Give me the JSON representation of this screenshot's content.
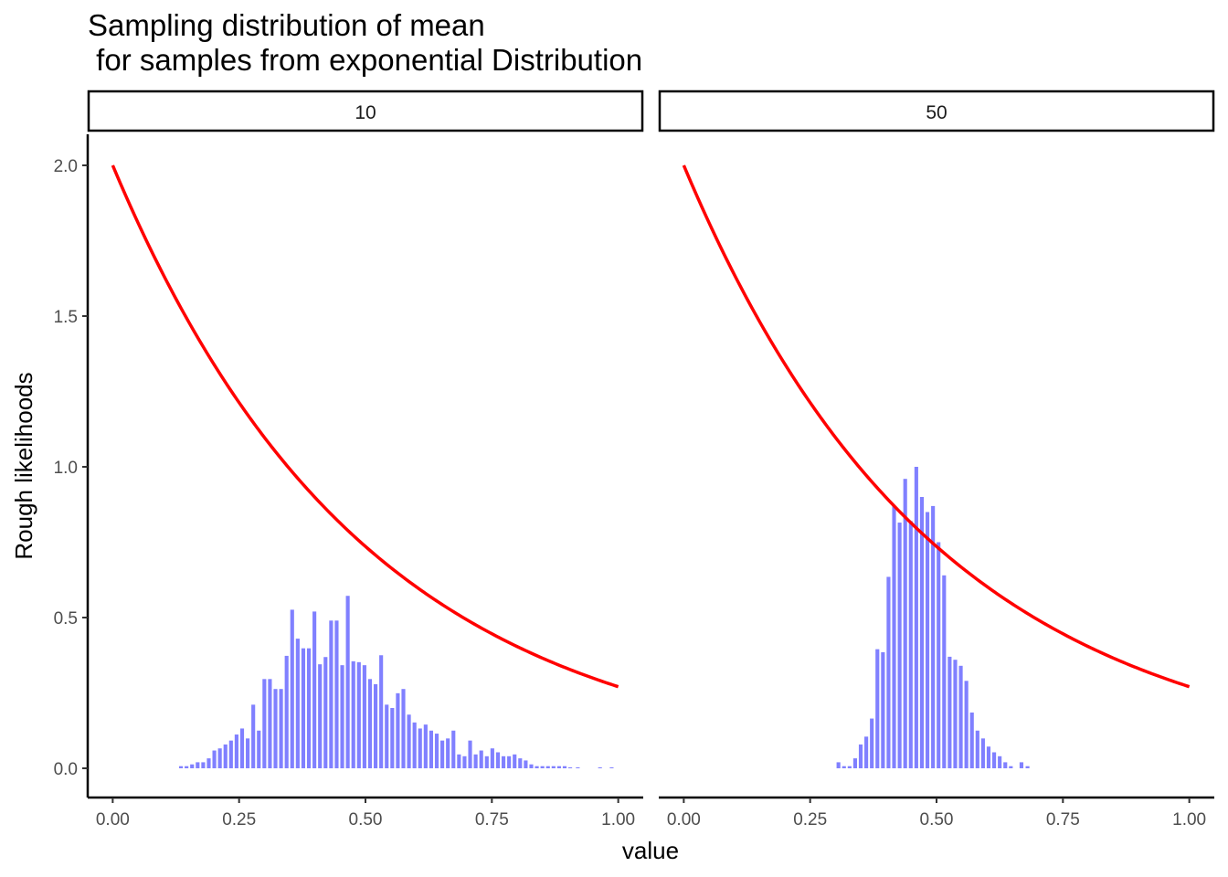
{
  "chart_data": {
    "type": "bar",
    "title_lines": [
      "Sampling distribution of mean",
      " for samples from exponential Distribution"
    ],
    "xlabel": "value",
    "ylabel": "Rough likelihoods",
    "xlim": [
      0,
      1
    ],
    "ylim": [
      0,
      2
    ],
    "x_ticks": [
      "0.00",
      "0.25",
      "0.50",
      "0.75",
      "1.00"
    ],
    "y_ticks": [
      "0.0",
      "0.5",
      "1.0",
      "1.5",
      "2.0"
    ],
    "grid": false,
    "bar_color": "#8080ff",
    "curve_color": "#ff0000",
    "curve": {
      "formula": "2*exp(-2*x)",
      "x_range": [
        0,
        1
      ]
    },
    "panels": [
      {
        "label": "10",
        "bar_width": 0.0111,
        "bars": [
          {
            "x": 0.135,
            "y": 0.007
          },
          {
            "x": 0.146,
            "y": 0.007
          },
          {
            "x": 0.157,
            "y": 0.013
          },
          {
            "x": 0.168,
            "y": 0.02
          },
          {
            "x": 0.179,
            "y": 0.02
          },
          {
            "x": 0.19,
            "y": 0.033
          },
          {
            "x": 0.201,
            "y": 0.059
          },
          {
            "x": 0.212,
            "y": 0.066
          },
          {
            "x": 0.223,
            "y": 0.079
          },
          {
            "x": 0.234,
            "y": 0.092
          },
          {
            "x": 0.245,
            "y": 0.112
          },
          {
            "x": 0.256,
            "y": 0.132
          },
          {
            "x": 0.267,
            "y": 0.099
          },
          {
            "x": 0.278,
            "y": 0.211
          },
          {
            "x": 0.289,
            "y": 0.125
          },
          {
            "x": 0.3,
            "y": 0.296
          },
          {
            "x": 0.311,
            "y": 0.296
          },
          {
            "x": 0.322,
            "y": 0.263
          },
          {
            "x": 0.333,
            "y": 0.263
          },
          {
            "x": 0.344,
            "y": 0.373
          },
          {
            "x": 0.355,
            "y": 0.526
          },
          {
            "x": 0.366,
            "y": 0.43
          },
          {
            "x": 0.377,
            "y": 0.398
          },
          {
            "x": 0.388,
            "y": 0.398
          },
          {
            "x": 0.399,
            "y": 0.52
          },
          {
            "x": 0.41,
            "y": 0.345
          },
          {
            "x": 0.421,
            "y": 0.369
          },
          {
            "x": 0.432,
            "y": 0.49
          },
          {
            "x": 0.443,
            "y": 0.49
          },
          {
            "x": 0.454,
            "y": 0.342
          },
          {
            "x": 0.465,
            "y": 0.572
          },
          {
            "x": 0.476,
            "y": 0.355
          },
          {
            "x": 0.487,
            "y": 0.352
          },
          {
            "x": 0.498,
            "y": 0.342
          },
          {
            "x": 0.509,
            "y": 0.296
          },
          {
            "x": 0.52,
            "y": 0.279
          },
          {
            "x": 0.531,
            "y": 0.375
          },
          {
            "x": 0.542,
            "y": 0.211
          },
          {
            "x": 0.553,
            "y": 0.2
          },
          {
            "x": 0.564,
            "y": 0.249
          },
          {
            "x": 0.575,
            "y": 0.263
          },
          {
            "x": 0.586,
            "y": 0.178
          },
          {
            "x": 0.597,
            "y": 0.152
          },
          {
            "x": 0.608,
            "y": 0.132
          },
          {
            "x": 0.619,
            "y": 0.145
          },
          {
            "x": 0.63,
            "y": 0.125
          },
          {
            "x": 0.641,
            "y": 0.115
          },
          {
            "x": 0.652,
            "y": 0.092
          },
          {
            "x": 0.663,
            "y": 0.099
          },
          {
            "x": 0.674,
            "y": 0.125
          },
          {
            "x": 0.685,
            "y": 0.046
          },
          {
            "x": 0.696,
            "y": 0.04
          },
          {
            "x": 0.707,
            "y": 0.092
          },
          {
            "x": 0.718,
            "y": 0.046
          },
          {
            "x": 0.729,
            "y": 0.059
          },
          {
            "x": 0.74,
            "y": 0.04
          },
          {
            "x": 0.751,
            "y": 0.066
          },
          {
            "x": 0.762,
            "y": 0.053
          },
          {
            "x": 0.773,
            "y": 0.04
          },
          {
            "x": 0.784,
            "y": 0.04
          },
          {
            "x": 0.795,
            "y": 0.046
          },
          {
            "x": 0.806,
            "y": 0.033
          },
          {
            "x": 0.817,
            "y": 0.026
          },
          {
            "x": 0.828,
            "y": 0.013
          },
          {
            "x": 0.839,
            "y": 0.007
          },
          {
            "x": 0.85,
            "y": 0.007
          },
          {
            "x": 0.861,
            "y": 0.007
          },
          {
            "x": 0.872,
            "y": 0.007
          },
          {
            "x": 0.883,
            "y": 0.007
          },
          {
            "x": 0.894,
            "y": 0.007
          },
          {
            "x": 0.905,
            "y": 0.003
          },
          {
            "x": 0.92,
            "y": 0.003
          },
          {
            "x": 0.964,
            "y": 0.003
          },
          {
            "x": 0.987,
            "y": 0.003
          }
        ]
      },
      {
        "label": "50",
        "bar_width": 0.0111,
        "bars": [
          {
            "x": 0.306,
            "y": 0.02
          },
          {
            "x": 0.317,
            "y": 0.007
          },
          {
            "x": 0.328,
            "y": 0.007
          },
          {
            "x": 0.339,
            "y": 0.033
          },
          {
            "x": 0.35,
            "y": 0.079
          },
          {
            "x": 0.361,
            "y": 0.105
          },
          {
            "x": 0.372,
            "y": 0.165
          },
          {
            "x": 0.383,
            "y": 0.395
          },
          {
            "x": 0.394,
            "y": 0.385
          },
          {
            "x": 0.405,
            "y": 0.635
          },
          {
            "x": 0.416,
            "y": 0.87
          },
          {
            "x": 0.427,
            "y": 0.815
          },
          {
            "x": 0.438,
            "y": 0.96
          },
          {
            "x": 0.449,
            "y": 0.82
          },
          {
            "x": 0.46,
            "y": 1.0
          },
          {
            "x": 0.471,
            "y": 0.9
          },
          {
            "x": 0.482,
            "y": 0.85
          },
          {
            "x": 0.493,
            "y": 0.87
          },
          {
            "x": 0.504,
            "y": 0.75
          },
          {
            "x": 0.515,
            "y": 0.64
          },
          {
            "x": 0.526,
            "y": 0.37
          },
          {
            "x": 0.537,
            "y": 0.36
          },
          {
            "x": 0.548,
            "y": 0.34
          },
          {
            "x": 0.559,
            "y": 0.29
          },
          {
            "x": 0.57,
            "y": 0.185
          },
          {
            "x": 0.581,
            "y": 0.125
          },
          {
            "x": 0.592,
            "y": 0.099
          },
          {
            "x": 0.603,
            "y": 0.072
          },
          {
            "x": 0.614,
            "y": 0.053
          },
          {
            "x": 0.625,
            "y": 0.04
          },
          {
            "x": 0.636,
            "y": 0.02
          },
          {
            "x": 0.647,
            "y": 0.007
          },
          {
            "x": 0.668,
            "y": 0.02
          },
          {
            "x": 0.68,
            "y": 0.007
          }
        ]
      }
    ]
  }
}
